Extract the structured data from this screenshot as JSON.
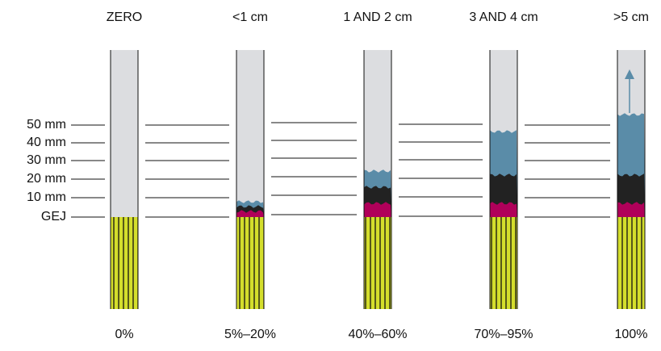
{
  "columns": [
    {
      "label": "ZERO",
      "percent": "0%"
    },
    {
      "label": "<1 cm",
      "percent": "5%–20%"
    },
    {
      "label": "1 AND 2 cm",
      "percent": "40%–60%"
    },
    {
      "label": "3 AND 4 cm",
      "percent": "70%–95%"
    },
    {
      "label": ">5 cm",
      "percent": "100%"
    }
  ],
  "scale_labels": [
    "50 mm",
    "40 mm",
    "30 mm",
    "20 mm",
    "10 mm",
    "GEJ"
  ]
}
